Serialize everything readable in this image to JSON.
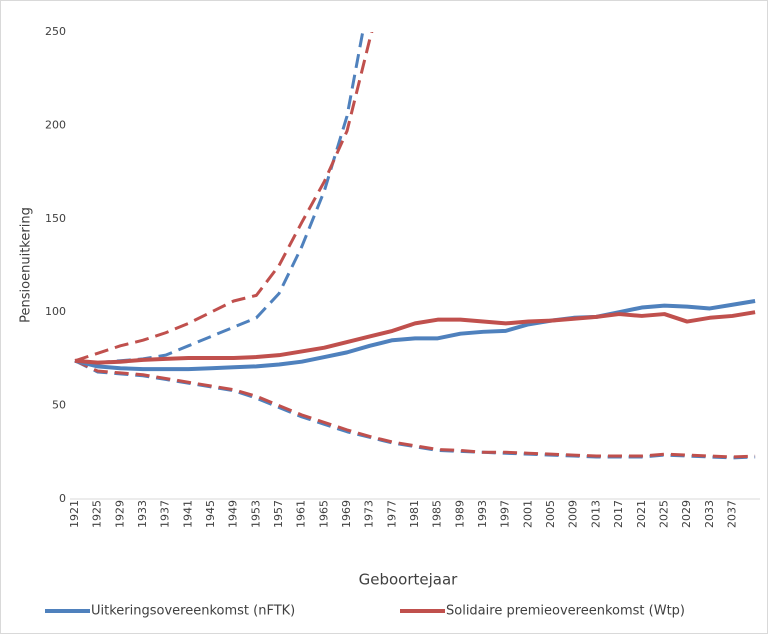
{
  "chart_data": {
    "type": "line",
    "x_label": "Geboortejaar",
    "y_label": "Pensioenuitkering",
    "categories": [
      "1921",
      "1925",
      "1929",
      "1933",
      "1937",
      "1941",
      "1945",
      "1949",
      "1953",
      "1957",
      "1961",
      "1965",
      "1969",
      "1973",
      "1977",
      "1981",
      "1985",
      "1989",
      "1993",
      "1997",
      "2001",
      "2005",
      "2009",
      "2013",
      "2017",
      "2021",
      "2025",
      "2029",
      "2033",
      "2037",
      null
    ],
    "series": [
      {
        "name": "Uitkeringsovereenkomst (nFTK)",
        "color": "#4f81bd",
        "values": [
          74,
          71,
          70,
          69.5,
          69.5,
          69.5,
          70,
          70.5,
          71,
          72,
          73.5,
          76,
          78.5,
          82,
          85,
          86,
          86,
          88.5,
          89.5,
          90,
          93.5,
          95.5,
          97,
          97.5,
          100,
          102.5,
          103.5,
          103,
          102,
          104,
          106
        ],
        "upper": [
          74,
          73,
          74,
          75,
          77,
          82,
          87,
          92,
          97,
          110,
          135,
          165,
          205,
          270,
          null,
          null,
          null,
          null,
          null,
          null,
          null,
          null,
          null,
          null,
          null,
          null,
          null,
          null,
          null,
          null,
          null
        ],
        "lower": [
          74,
          68,
          67,
          66,
          64,
          62,
          60,
          58,
          54,
          49,
          44,
          40,
          36,
          33,
          30,
          28,
          26,
          25.5,
          25,
          24.5,
          24,
          23.5,
          23,
          22.5,
          22.5,
          22.5,
          23.5,
          23,
          22.5,
          22,
          22.5
        ]
      },
      {
        "name": "Solidaire premieovereenkomst (Wtp)",
        "color": "#c0504d",
        "values": [
          74,
          73,
          73.5,
          74.5,
          75,
          75.5,
          75.5,
          75.5,
          76,
          77,
          79,
          81,
          84,
          87,
          90,
          94,
          96,
          96,
          95,
          94,
          95,
          95.5,
          96.5,
          97.5,
          99,
          98,
          99,
          95,
          97,
          98,
          100
        ],
        "upper": [
          74,
          78,
          82,
          85,
          89,
          94,
          100,
          106,
          109,
          125,
          148,
          170,
          197,
          246,
          290,
          null,
          null,
          null,
          null,
          null,
          null,
          null,
          null,
          null,
          null,
          null,
          null,
          null,
          null,
          null,
          null
        ],
        "lower": [
          74,
          68.5,
          67.5,
          66.5,
          64.5,
          62.5,
          60.5,
          58.5,
          55,
          50,
          45,
          41,
          37,
          33.5,
          30.5,
          28.5,
          26.5,
          26,
          25,
          25,
          24.5,
          24,
          23.5,
          23,
          23,
          23,
          24,
          23.5,
          23,
          22.5,
          23
        ]
      }
    ],
    "ylim": [
      0,
      250
    ],
    "yticks": [
      0,
      50,
      100,
      150,
      200,
      250
    ],
    "legend": "bottom"
  }
}
